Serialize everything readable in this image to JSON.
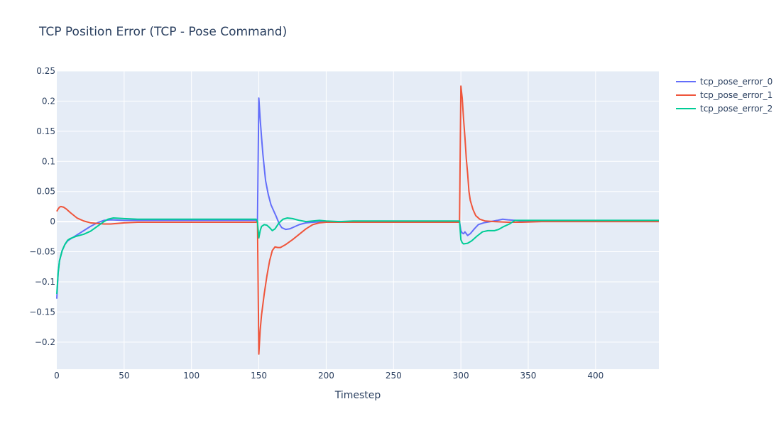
{
  "chart_data": {
    "type": "line",
    "title": "TCP Position Error (TCP - Pose Command)",
    "xlabel": "Timestep",
    "ylabel": "",
    "xlim": [
      0,
      447
    ],
    "ylim": [
      -0.245,
      0.25
    ],
    "xticks": [
      0,
      50,
      100,
      150,
      200,
      250,
      300,
      350,
      400
    ],
    "xtick_labels": [
      "0",
      "50",
      "100",
      "150",
      "200",
      "250",
      "300",
      "350",
      "400"
    ],
    "yticks": [
      -0.2,
      -0.15,
      -0.1,
      -0.05,
      0,
      0.05,
      0.1,
      0.15,
      0.2,
      0.25
    ],
    "ytick_labels": [
      "−0.2",
      "−0.15",
      "−0.1",
      "−0.05",
      "0",
      "0.05",
      "0.1",
      "0.15",
      "0.2",
      "0.25"
    ],
    "grid": true,
    "legend_position": "top-right",
    "background": "#e5ecf6",
    "series": [
      {
        "name": "tcp_pose_error_0",
        "color": "#636efa",
        "points": [
          [
            0,
            -0.128
          ],
          [
            1,
            -0.085
          ],
          [
            2,
            -0.065
          ],
          [
            4,
            -0.048
          ],
          [
            6,
            -0.038
          ],
          [
            8,
            -0.032
          ],
          [
            10,
            -0.029
          ],
          [
            15,
            -0.022
          ],
          [
            20,
            -0.015
          ],
          [
            25,
            -0.008
          ],
          [
            30,
            -0.002
          ],
          [
            35,
            0.002
          ],
          [
            40,
            0.003
          ],
          [
            50,
            0.002
          ],
          [
            60,
            0.002
          ],
          [
            80,
            0.002
          ],
          [
            100,
            0.002
          ],
          [
            120,
            0.002
          ],
          [
            140,
            0.002
          ],
          [
            148,
            0.002
          ],
          [
            149,
            0.0
          ],
          [
            150,
            0.205
          ],
          [
            151,
            0.17
          ],
          [
            152,
            0.14
          ],
          [
            153,
            0.112
          ],
          [
            154,
            0.09
          ],
          [
            155,
            0.068
          ],
          [
            157,
            0.045
          ],
          [
            159,
            0.028
          ],
          [
            161,
            0.018
          ],
          [
            163,
            0.008
          ],
          [
            165,
            -0.003
          ],
          [
            167,
            -0.01
          ],
          [
            170,
            -0.013
          ],
          [
            173,
            -0.012
          ],
          [
            176,
            -0.009
          ],
          [
            180,
            -0.005
          ],
          [
            185,
            -0.002
          ],
          [
            190,
            -0.001
          ],
          [
            200,
            0.0
          ],
          [
            220,
            0.0
          ],
          [
            250,
            0.0
          ],
          [
            280,
            0.0
          ],
          [
            299,
            0.0
          ],
          [
            300,
            -0.015
          ],
          [
            301,
            -0.019
          ],
          [
            302,
            -0.02
          ],
          [
            303,
            -0.017
          ],
          [
            305,
            -0.023
          ],
          [
            307,
            -0.02
          ],
          [
            310,
            -0.012
          ],
          [
            313,
            -0.005
          ],
          [
            317,
            -0.002
          ],
          [
            322,
            0.0
          ],
          [
            327,
            0.002
          ],
          [
            331,
            0.004
          ],
          [
            335,
            0.003
          ],
          [
            340,
            0.002
          ],
          [
            345,
            0.001
          ],
          [
            360,
            0.001
          ],
          [
            400,
            0.001
          ],
          [
            447,
            0.001
          ]
        ]
      },
      {
        "name": "tcp_pose_error_1",
        "color": "#ef553b",
        "points": [
          [
            0,
            0.017
          ],
          [
            1,
            0.021
          ],
          [
            2,
            0.024
          ],
          [
            3,
            0.025
          ],
          [
            5,
            0.024
          ],
          [
            7,
            0.021
          ],
          [
            10,
            0.015
          ],
          [
            15,
            0.006
          ],
          [
            20,
            0.001
          ],
          [
            25,
            -0.002
          ],
          [
            30,
            -0.003
          ],
          [
            35,
            -0.004
          ],
          [
            40,
            -0.004
          ],
          [
            50,
            -0.002
          ],
          [
            60,
            -0.001
          ],
          [
            80,
            -0.001
          ],
          [
            100,
            -0.001
          ],
          [
            120,
            -0.001
          ],
          [
            140,
            -0.001
          ],
          [
            148,
            -0.001
          ],
          [
            149,
            0.0
          ],
          [
            150,
            -0.22
          ],
          [
            151,
            -0.18
          ],
          [
            152,
            -0.155
          ],
          [
            154,
            -0.12
          ],
          [
            156,
            -0.09
          ],
          [
            158,
            -0.065
          ],
          [
            160,
            -0.048
          ],
          [
            162,
            -0.042
          ],
          [
            164,
            -0.043
          ],
          [
            166,
            -0.043
          ],
          [
            170,
            -0.038
          ],
          [
            175,
            -0.03
          ],
          [
            180,
            -0.021
          ],
          [
            185,
            -0.012
          ],
          [
            190,
            -0.005
          ],
          [
            195,
            -0.002
          ],
          [
            200,
            -0.001
          ],
          [
            210,
            -0.001
          ],
          [
            250,
            -0.001
          ],
          [
            280,
            -0.001
          ],
          [
            299,
            -0.001
          ],
          [
            300,
            0.225
          ],
          [
            301,
            0.205
          ],
          [
            302,
            0.17
          ],
          [
            303,
            0.14
          ],
          [
            304,
            0.105
          ],
          [
            305,
            0.08
          ],
          [
            306,
            0.05
          ],
          [
            307,
            0.035
          ],
          [
            309,
            0.02
          ],
          [
            311,
            0.01
          ],
          [
            314,
            0.004
          ],
          [
            318,
            0.001
          ],
          [
            325,
            0.0
          ],
          [
            335,
            -0.001
          ],
          [
            345,
            -0.001
          ],
          [
            360,
            0.0
          ],
          [
            400,
            0.0
          ],
          [
            447,
            0.0
          ]
        ]
      },
      {
        "name": "tcp_pose_error_2",
        "color": "#00cc96",
        "points": [
          [
            0,
            -0.12
          ],
          [
            1,
            -0.085
          ],
          [
            2,
            -0.065
          ],
          [
            4,
            -0.048
          ],
          [
            6,
            -0.038
          ],
          [
            8,
            -0.031
          ],
          [
            10,
            -0.028
          ],
          [
            15,
            -0.024
          ],
          [
            20,
            -0.021
          ],
          [
            25,
            -0.016
          ],
          [
            30,
            -0.008
          ],
          [
            35,
            0.0
          ],
          [
            38,
            0.004
          ],
          [
            42,
            0.006
          ],
          [
            50,
            0.005
          ],
          [
            60,
            0.004
          ],
          [
            80,
            0.004
          ],
          [
            100,
            0.004
          ],
          [
            120,
            0.004
          ],
          [
            140,
            0.004
          ],
          [
            148,
            0.004
          ],
          [
            149,
            0.0
          ],
          [
            150,
            -0.027
          ],
          [
            151,
            -0.015
          ],
          [
            152,
            -0.008
          ],
          [
            154,
            -0.005
          ],
          [
            156,
            -0.006
          ],
          [
            158,
            -0.01
          ],
          [
            160,
            -0.015
          ],
          [
            162,
            -0.012
          ],
          [
            165,
            -0.002
          ],
          [
            168,
            0.004
          ],
          [
            171,
            0.006
          ],
          [
            175,
            0.005
          ],
          [
            180,
            0.002
          ],
          [
            185,
            0.0
          ],
          [
            190,
            0.001
          ],
          [
            195,
            0.002
          ],
          [
            200,
            0.001
          ],
          [
            210,
            0.0
          ],
          [
            220,
            0.001
          ],
          [
            250,
            0.001
          ],
          [
            280,
            0.001
          ],
          [
            299,
            0.001
          ],
          [
            300,
            -0.03
          ],
          [
            301,
            -0.035
          ],
          [
            302,
            -0.037
          ],
          [
            305,
            -0.036
          ],
          [
            308,
            -0.032
          ],
          [
            312,
            -0.024
          ],
          [
            316,
            -0.017
          ],
          [
            320,
            -0.015
          ],
          [
            325,
            -0.015
          ],
          [
            328,
            -0.013
          ],
          [
            332,
            -0.008
          ],
          [
            336,
            -0.004
          ],
          [
            340,
            0.002
          ],
          [
            345,
            0.002
          ],
          [
            360,
            0.002
          ],
          [
            400,
            0.002
          ],
          [
            447,
            0.002
          ]
        ]
      }
    ]
  }
}
